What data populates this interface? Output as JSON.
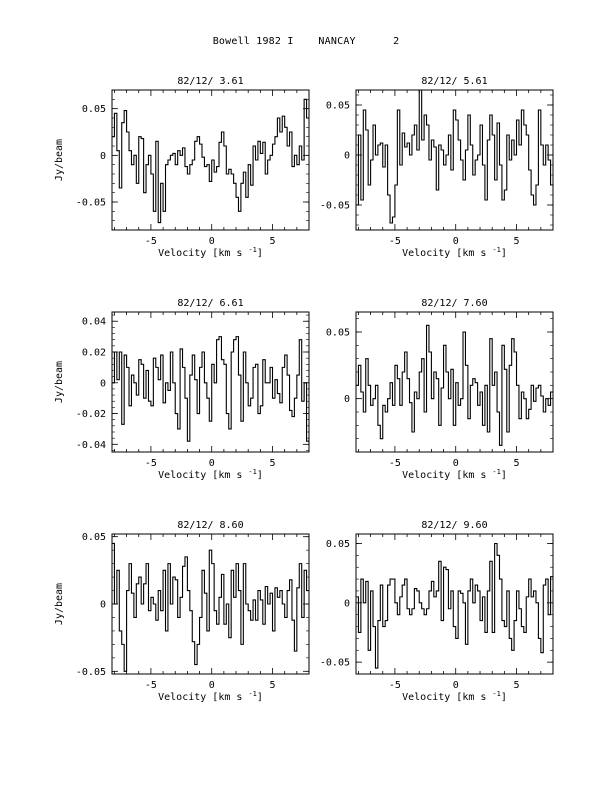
{
  "page": {
    "title": "Bowell 1982 I    NANCAY      2"
  },
  "chart_data": [
    {
      "type": "line",
      "title": "82/12/ 3.61",
      "xlabel": "Velocity [km s",
      "xlabel_sup": "-1",
      "xlabel_end": "]",
      "ylabel": "Jy/beam",
      "xlim": [
        -8.2,
        8.0
      ],
      "ylim": [
        -0.08,
        0.07
      ],
      "xticks": [
        -5,
        0,
        5
      ],
      "xtick_labels": [
        "-5",
        "0",
        "5"
      ],
      "yticks": [
        0.05,
        0,
        -0.05
      ],
      "ytick_labels": [
        "0.05",
        "0",
        "-0.05"
      ],
      "series": [
        {
          "x_start": -8.2,
          "x_step": 0.2,
          "y": [
            0.02,
            0.045,
            0.005,
            -0.035,
            0.035,
            0.048,
            0.025,
            0.005,
            -0.01,
            0.0,
            -0.03,
            0.02,
            0.018,
            -0.04,
            -0.01,
            0.0,
            -0.02,
            -0.06,
            0.015,
            -0.072,
            -0.03,
            -0.06,
            -0.01,
            -0.005,
            0.0,
            0.002,
            -0.01,
            0.005,
            0.0,
            0.008,
            -0.012,
            -0.02,
            -0.01,
            -0.005,
            0.015,
            0.02,
            0.012,
            -0.002,
            -0.012,
            -0.01,
            -0.028,
            -0.005,
            -0.018,
            -0.012,
            0.014,
            0.025,
            0.01,
            -0.02,
            -0.015,
            -0.02,
            -0.03,
            -0.045,
            -0.06,
            -0.03,
            -0.018,
            -0.045,
            -0.01,
            -0.032,
            0.01,
            -0.005,
            0.015,
            0.002,
            0.014,
            -0.02,
            -0.005,
            0.0,
            0.012,
            0.02,
            0.04,
            0.025,
            0.042,
            0.03,
            0.01,
            0.025,
            -0.012,
            0.0,
            -0.01,
            0.01,
            -0.005,
            0.06,
            0.04
          ]
        }
      ]
    },
    {
      "type": "line",
      "title": "82/12/ 5.61",
      "xlabel": "Velocity [km s",
      "xlabel_sup": "-1",
      "xlabel_end": "]",
      "ylabel": "",
      "xlim": [
        -8.2,
        8.0
      ],
      "ylim": [
        -0.075,
        0.065
      ],
      "xticks": [
        -5,
        0,
        5
      ],
      "xtick_labels": [
        "-5",
        "0",
        "5"
      ],
      "yticks": [
        0.05,
        0,
        -0.05
      ],
      "ytick_labels": [
        "0.05",
        "0",
        "-0.05"
      ],
      "series": [
        {
          "x_start": -8.2,
          "x_step": 0.2,
          "y": [
            -0.05,
            0.02,
            -0.045,
            0.045,
            0.025,
            -0.03,
            -0.005,
            0.03,
            0.0,
            0.01,
            0.012,
            -0.012,
            0.01,
            -0.04,
            -0.068,
            -0.062,
            -0.03,
            0.045,
            -0.01,
            0.022,
            0.008,
            0.012,
            0.0,
            0.02,
            0.03,
            0.005,
            0.065,
            0.015,
            0.04,
            0.03,
            -0.005,
            0.015,
            0.008,
            -0.035,
            0.01,
            0.005,
            -0.01,
            0.0,
            0.02,
            -0.015,
            0.045,
            0.035,
            0.015,
            -0.005,
            -0.025,
            0.005,
            0.04,
            0.01,
            -0.02,
            -0.005,
            0.0,
            0.03,
            -0.01,
            -0.045,
            0.015,
            0.04,
            0.02,
            -0.025,
            0.032,
            -0.01,
            -0.045,
            -0.035,
            0.02,
            -0.005,
            0.015,
            0.0,
            0.035,
            0.01,
            0.045,
            0.03,
            0.02,
            -0.015,
            -0.04,
            -0.05,
            -0.03,
            0.045,
            0.01,
            -0.01,
            0.01,
            -0.005,
            -0.03
          ]
        }
      ]
    },
    {
      "type": "line",
      "title": "82/12/ 6.61",
      "xlabel": "Velocity [km s",
      "xlabel_sup": "-1",
      "xlabel_end": "]",
      "ylabel": "Jy/beam",
      "xlim": [
        -8.2,
        8.0
      ],
      "ylim": [
        -0.045,
        0.046
      ],
      "xticks": [
        -5,
        0,
        5
      ],
      "xtick_labels": [
        "-5",
        "0",
        "5"
      ],
      "yticks": [
        0.04,
        0.02,
        0,
        -0.02,
        -0.04
      ],
      "ytick_labels": [
        "0.04",
        "0.02",
        "0",
        "-0.02",
        "-0.04"
      ],
      "series": [
        {
          "x_start": -8.2,
          "x_step": 0.2,
          "y": [
            0.0,
            0.02,
            0.002,
            0.02,
            -0.027,
            0.018,
            0.01,
            -0.015,
            0.005,
            0.0,
            -0.008,
            0.015,
            0.012,
            -0.01,
            0.008,
            -0.012,
            -0.015,
            0.016,
            0.01,
            0.002,
            0.018,
            -0.013,
            0.0,
            -0.005,
            0.02,
            0.0,
            -0.02,
            -0.03,
            0.022,
            0.01,
            -0.01,
            -0.038,
            0.005,
            0.018,
            0.002,
            -0.02,
            0.01,
            0.02,
            0.0,
            -0.01,
            -0.025,
            0.012,
            0.0,
            0.028,
            0.03,
            0.015,
            0.012,
            -0.02,
            -0.03,
            0.02,
            0.028,
            0.03,
            0.005,
            -0.025,
            0.02,
            0.0,
            -0.015,
            -0.01,
            0.01,
            0.012,
            -0.02,
            -0.015,
            0.015,
            0.0,
            0.0,
            0.01,
            -0.01,
            0.002,
            -0.007,
            -0.013,
            0.01,
            0.018,
            0.005,
            -0.018,
            -0.022,
            -0.01,
            0.005,
            0.028,
            -0.012,
            0.0,
            -0.038
          ]
        }
      ]
    },
    {
      "type": "line",
      "title": "82/12/ 7.60",
      "xlabel": "Velocity [km s",
      "xlabel_sup": "-1",
      "xlabel_end": "]",
      "ylabel": "",
      "xlim": [
        -8.2,
        8.0
      ],
      "ylim": [
        -0.04,
        0.065
      ],
      "xticks": [
        -5,
        0,
        5
      ],
      "xtick_labels": [
        "-5",
        "0",
        "5"
      ],
      "yticks": [
        0.05,
        0
      ],
      "ytick_labels": [
        "0.05",
        "0"
      ],
      "series": [
        {
          "x_start": -8.2,
          "x_step": 0.2,
          "y": [
            0.01,
            0.025,
            0.005,
            -0.01,
            0.03,
            0.01,
            -0.005,
            0.0,
            0.01,
            -0.02,
            -0.03,
            -0.005,
            -0.01,
            0.0,
            0.012,
            -0.005,
            0.025,
            0.015,
            -0.005,
            0.02,
            0.035,
            0.015,
            -0.003,
            -0.025,
            0.005,
            0.0,
            0.02,
            0.03,
            -0.01,
            0.055,
            0.035,
            0.0,
            0.02,
            0.015,
            -0.02,
            0.008,
            0.04,
            0.02,
            0.0,
            0.022,
            -0.02,
            0.012,
            -0.005,
            0.0,
            0.05,
            0.025,
            -0.015,
            0.01,
            0.015,
            0.012,
            -0.005,
            0.005,
            -0.02,
            0.01,
            -0.025,
            0.045,
            0.01,
            0.02,
            -0.01,
            -0.035,
            0.04,
            0.022,
            -0.025,
            0.025,
            0.045,
            0.035,
            0.01,
            -0.015,
            0.005,
            0.0,
            -0.015,
            -0.008,
            0.01,
            -0.002,
            0.008,
            0.01,
            0.002,
            -0.01,
            0.0,
            -0.005,
            0.005
          ]
        }
      ]
    },
    {
      "type": "line",
      "title": "82/12/ 8.60",
      "xlabel": "Velocity [km s",
      "xlabel_sup": "-1",
      "xlabel_end": "]",
      "ylabel": "Jy/beam",
      "xlim": [
        -8.2,
        8.0
      ],
      "ylim": [
        -0.052,
        0.052
      ],
      "xticks": [
        -5,
        0,
        5
      ],
      "xtick_labels": [
        "-5",
        "0",
        "5"
      ],
      "yticks": [
        0.05,
        0,
        -0.05
      ],
      "ytick_labels": [
        "0.05",
        "0",
        "-0.05"
      ],
      "series": [
        {
          "x_start": -8.2,
          "x_step": 0.2,
          "y": [
            0.045,
            0.0,
            0.025,
            -0.02,
            -0.03,
            -0.05,
            0.01,
            0.03,
            0.008,
            -0.01,
            0.015,
            0.02,
            0.0,
            0.015,
            0.03,
            -0.005,
            0.005,
            0.0,
            -0.012,
            0.01,
            -0.005,
            0.025,
            -0.02,
            0.03,
            0.0,
            0.02,
            0.018,
            -0.01,
            0.005,
            0.028,
            0.035,
            0.01,
            -0.005,
            -0.028,
            -0.045,
            -0.03,
            -0.01,
            0.025,
            0.008,
            -0.02,
            0.04,
            0.03,
            -0.005,
            -0.015,
            0.005,
            0.022,
            -0.015,
            0.0,
            -0.025,
            0.025,
            0.005,
            0.03,
            0.01,
            -0.03,
            0.03,
            0.0,
            -0.005,
            -0.012,
            0.003,
            -0.012,
            0.01,
            0.003,
            -0.015,
            0.013,
            0.0,
            0.008,
            -0.02,
            0.012,
            0.005,
            0.01,
            0.0,
            -0.01,
            0.01,
            0.018,
            -0.012,
            -0.035,
            0.012,
            0.03,
            -0.01,
            0.025,
            0.01
          ]
        }
      ]
    },
    {
      "type": "line",
      "title": "82/12/ 9.60",
      "xlabel": "Velocity [km s",
      "xlabel_sup": "-1",
      "xlabel_end": "]",
      "ylabel": "",
      "xlim": [
        -8.2,
        8.0
      ],
      "ylim": [
        -0.06,
        0.058
      ],
      "xticks": [
        -5,
        0,
        5
      ],
      "xtick_labels": [
        "-5",
        "0",
        "5"
      ],
      "yticks": [
        0.05,
        0,
        -0.05
      ],
      "ytick_labels": [
        "0.05",
        "0",
        "-0.05"
      ],
      "series": [
        {
          "x_start": -8.2,
          "x_step": 0.2,
          "y": [
            0.005,
            -0.025,
            0.02,
            0.0,
            0.018,
            -0.04,
            0.01,
            -0.02,
            -0.055,
            -0.015,
            0.015,
            -0.02,
            -0.015,
            0.015,
            0.02,
            0.02,
            0.0,
            -0.01,
            0.005,
            0.015,
            0.02,
            -0.005,
            -0.01,
            -0.005,
            0.012,
            0.01,
            0.0,
            -0.005,
            -0.01,
            -0.005,
            0.01,
            0.018,
            0.005,
            0.01,
            0.035,
            -0.015,
            0.03,
            0.028,
            -0.005,
            0.01,
            -0.02,
            -0.03,
            0.01,
            0.008,
            0.0,
            -0.035,
            0.01,
            0.02,
            0.0,
            0.015,
            0.01,
            -0.015,
            0.005,
            -0.025,
            0.01,
            0.035,
            -0.025,
            0.05,
            0.04,
            0.02,
            -0.015,
            -0.02,
            0.01,
            -0.03,
            -0.04,
            -0.015,
            0.01,
            -0.005,
            -0.02,
            -0.025,
            0.005,
            0.02,
            0.005,
            0.01,
            0.0,
            -0.03,
            -0.042,
            0.015,
            0.02,
            -0.01,
            0.022
          ]
        }
      ]
    }
  ]
}
